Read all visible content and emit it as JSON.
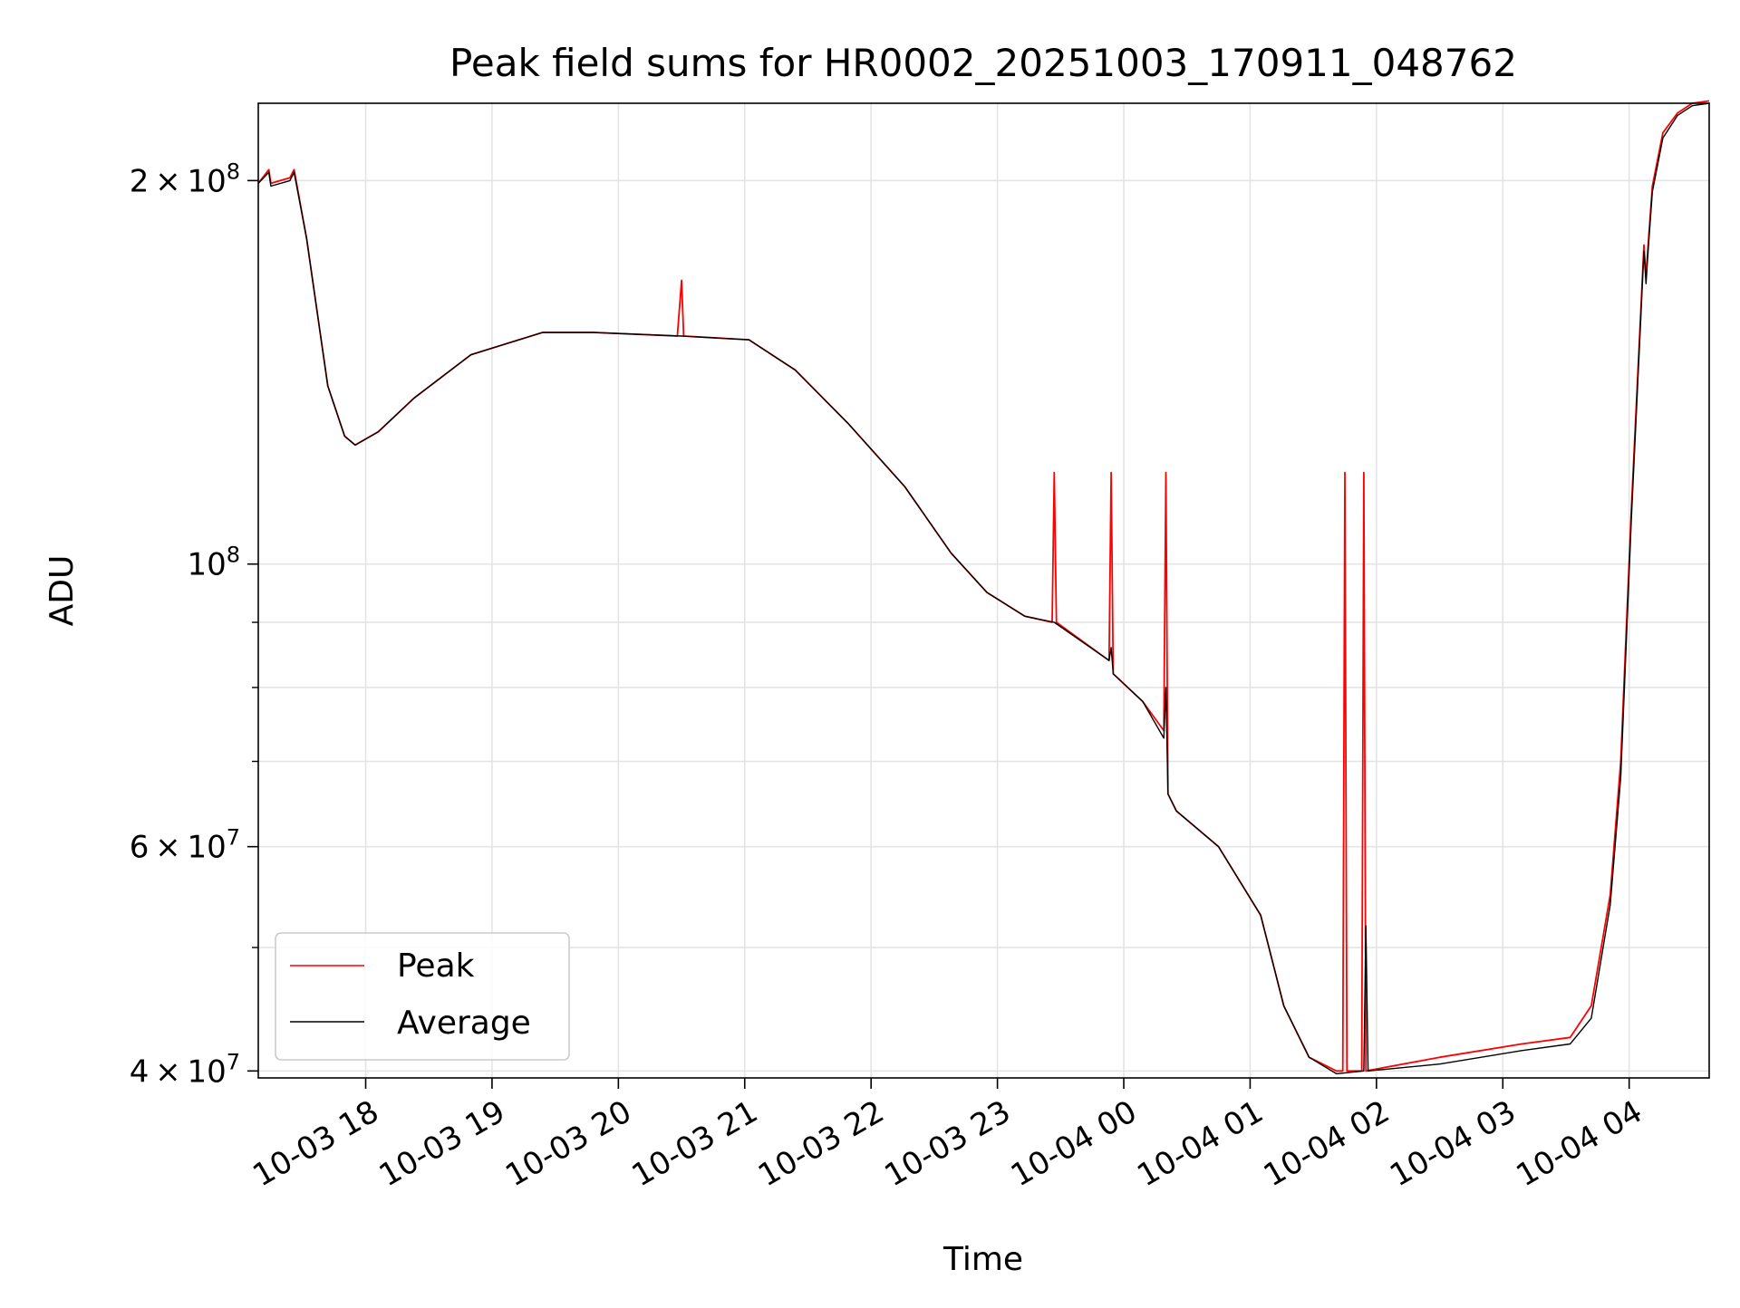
{
  "chart_data": {
    "type": "line",
    "title": "Peak field sums for HR0002_20251003_170911_048762",
    "xlabel": "Time",
    "ylabel": "ADU",
    "yscale": "log",
    "grid": true,
    "legend_placement": "lower-left",
    "xlim": [
      "2025-10-03 17:09",
      "2025-10-04 04:38"
    ],
    "ylim": [
      39500000,
      230000000
    ],
    "x_ticks": [
      {
        "t": "2025-10-03 18:00",
        "label": "10-03 18"
      },
      {
        "t": "2025-10-03 19:00",
        "label": "10-03 19"
      },
      {
        "t": "2025-10-03 20:00",
        "label": "10-03 20"
      },
      {
        "t": "2025-10-03 21:00",
        "label": "10-03 21"
      },
      {
        "t": "2025-10-03 22:00",
        "label": "10-03 22"
      },
      {
        "t": "2025-10-03 23:00",
        "label": "10-03 23"
      },
      {
        "t": "2025-10-04 00:00",
        "label": "10-04 00"
      },
      {
        "t": "2025-10-04 01:00",
        "label": "10-04 01"
      },
      {
        "t": "2025-10-04 02:00",
        "label": "10-04 02"
      },
      {
        "t": "2025-10-04 03:00",
        "label": "10-04 03"
      },
      {
        "t": "2025-10-04 04:00",
        "label": "10-04 04"
      }
    ],
    "y_major_ticks": [
      {
        "v": 40000000,
        "mant": "4",
        "exp": "7"
      },
      {
        "v": 60000000,
        "mant": "6",
        "exp": "7"
      },
      {
        "v": 100000000,
        "mant": "",
        "exp": "8"
      },
      {
        "v": 200000000,
        "mant": "2",
        "exp": "8"
      }
    ],
    "y_minor_ticks": [
      50000000,
      70000000,
      80000000,
      90000000
    ],
    "series": [
      {
        "name": "Peak",
        "color": "#ff0000",
        "x": [
          "2025-10-03 17:09",
          "2025-10-03 17:14",
          "2025-10-03 17:15",
          "2025-10-03 17:24",
          "2025-10-03 17:26",
          "2025-10-03 17:32",
          "2025-10-03 17:42",
          "2025-10-03 17:50",
          "2025-10-03 17:55",
          "2025-10-03 18:06",
          "2025-10-03 18:23",
          "2025-10-03 18:50",
          "2025-10-03 19:24",
          "2025-10-03 19:48",
          "2025-10-03 20:28",
          "2025-10-03 20:30",
          "2025-10-03 20:31",
          "2025-10-03 21:02",
          "2025-10-03 21:24",
          "2025-10-03 21:49",
          "2025-10-03 22:16",
          "2025-10-03 22:38",
          "2025-10-03 22:55",
          "2025-10-03 23:13",
          "2025-10-03 23:26",
          "2025-10-03 23:27",
          "2025-10-03 23:28",
          "2025-10-03 23:53",
          "2025-10-03 23:54",
          "2025-10-03 23:55",
          "2025-10-04 00:09",
          "2025-10-04 00:19",
          "2025-10-04 00:20",
          "2025-10-04 00:21",
          "2025-10-04 00:25",
          "2025-10-04 00:45",
          "2025-10-04 01:05",
          "2025-10-04 01:16",
          "2025-10-04 01:28",
          "2025-10-04 01:41",
          "2025-10-04 01:44",
          "2025-10-04 01:45",
          "2025-10-04 01:46",
          "2025-10-04 01:53",
          "2025-10-04 01:54",
          "2025-10-04 01:55",
          "2025-10-04 02:30",
          "2025-10-04 03:09",
          "2025-10-04 03:32",
          "2025-10-04 03:42",
          "2025-10-04 03:51",
          "2025-10-04 03:56",
          "2025-10-04 04:01",
          "2025-10-04 04:07",
          "2025-10-04 04:08",
          "2025-10-04 04:09",
          "2025-10-04 04:11",
          "2025-10-04 04:16",
          "2025-10-04 04:23",
          "2025-10-04 04:30",
          "2025-10-04 04:38"
        ],
        "values": [
          199000000,
          204000000,
          199000000,
          201000000,
          204000000,
          180000000,
          138000000,
          126000000,
          124000000,
          127000000,
          135000000,
          146000000,
          152000000,
          152000000,
          151000000,
          167000000,
          151000000,
          150000000,
          142000000,
          129000000,
          115000000,
          102000000,
          95000000,
          91000000,
          90000000,
          118000000,
          90000000,
          84000000,
          118000000,
          82000000,
          78000000,
          74000000,
          118000000,
          66000000,
          64000000,
          60000000,
          53000000,
          45000000,
          41000000,
          40000000,
          40000000,
          118000000,
          40000000,
          40000000,
          118000000,
          40000000,
          41000000,
          42000000,
          42500000,
          45000000,
          55000000,
          70000000,
          110000000,
          178000000,
          168000000,
          178000000,
          198000000,
          218000000,
          226000000,
          230000000,
          231000000
        ]
      },
      {
        "name": "Average",
        "color": "#000000",
        "x": [
          "2025-10-03 17:09",
          "2025-10-03 17:14",
          "2025-10-03 17:15",
          "2025-10-03 17:24",
          "2025-10-03 17:26",
          "2025-10-03 17:32",
          "2025-10-03 17:42",
          "2025-10-03 17:50",
          "2025-10-03 17:55",
          "2025-10-03 18:06",
          "2025-10-03 18:23",
          "2025-10-03 18:50",
          "2025-10-03 19:24",
          "2025-10-03 19:48",
          "2025-10-03 20:30",
          "2025-10-03 21:02",
          "2025-10-03 21:24",
          "2025-10-03 21:49",
          "2025-10-03 22:16",
          "2025-10-03 22:38",
          "2025-10-03 22:55",
          "2025-10-03 23:13",
          "2025-10-03 23:27",
          "2025-10-03 23:53",
          "2025-10-03 23:54",
          "2025-10-03 23:55",
          "2025-10-04 00:09",
          "2025-10-04 00:19",
          "2025-10-04 00:20",
          "2025-10-04 00:21",
          "2025-10-04 00:25",
          "2025-10-04 00:45",
          "2025-10-04 01:05",
          "2025-10-04 01:16",
          "2025-10-04 01:28",
          "2025-10-04 01:41",
          "2025-10-04 01:54",
          "2025-10-04 01:55",
          "2025-10-04 01:56",
          "2025-10-04 02:30",
          "2025-10-04 03:09",
          "2025-10-04 03:32",
          "2025-10-04 03:42",
          "2025-10-04 03:51",
          "2025-10-04 03:56",
          "2025-10-04 04:01",
          "2025-10-04 04:07",
          "2025-10-04 04:08",
          "2025-10-04 04:09",
          "2025-10-04 04:11",
          "2025-10-04 04:16",
          "2025-10-04 04:23",
          "2025-10-04 04:30",
          "2025-10-04 04:38"
        ],
        "values": [
          199000000,
          203000000,
          198000000,
          200000000,
          203000000,
          180000000,
          138000000,
          126000000,
          124000000,
          127000000,
          135000000,
          146000000,
          152000000,
          152000000,
          151000000,
          150000000,
          142000000,
          129000000,
          115000000,
          102000000,
          95000000,
          91000000,
          90000000,
          84000000,
          86000000,
          82000000,
          78000000,
          73000000,
          80000000,
          66000000,
          64000000,
          60000000,
          53000000,
          45000000,
          41000000,
          39800000,
          40000000,
          52000000,
          40000000,
          40500000,
          41500000,
          42000000,
          44000000,
          54000000,
          68000000,
          108000000,
          176000000,
          166000000,
          176000000,
          196000000,
          216000000,
          225000000,
          229000000,
          230000000
        ]
      }
    ]
  }
}
